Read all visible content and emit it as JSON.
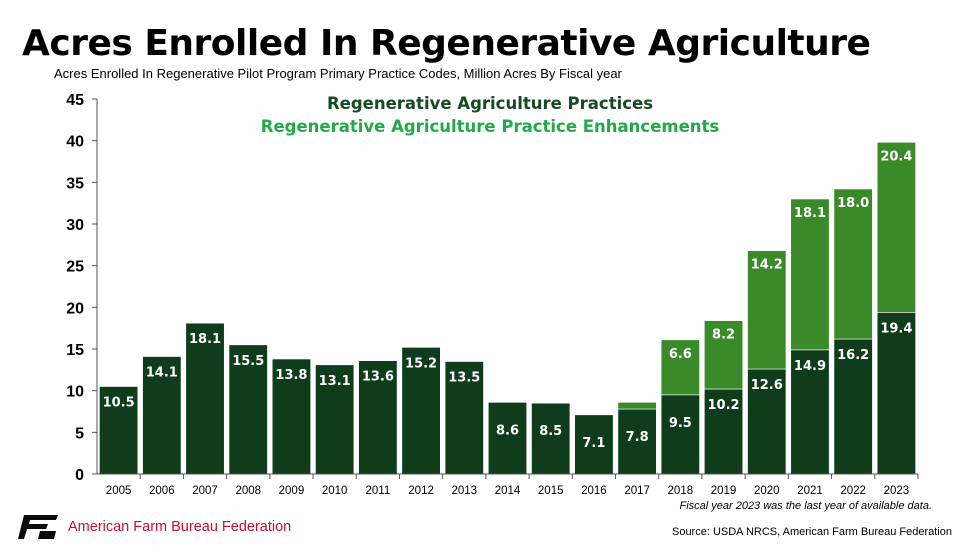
{
  "header": {
    "title": "Acres Enrolled In Regenerative Agriculture",
    "subtitle": "Acres Enrolled In Regenerative Pilot Program Primary Practice Codes, Million Acres By Fiscal year"
  },
  "colors": {
    "practices": "#0f3d1c",
    "enhancements": "#3a8a2a",
    "legend_practices": "#164a22",
    "legend_enhancements": "#23a84a",
    "brand_red": "#c8102e"
  },
  "chart_data": {
    "type": "bar",
    "stacked": true,
    "categories": [
      "2005",
      "2006",
      "2007",
      "2008",
      "2009",
      "2010",
      "2011",
      "2012",
      "2013",
      "2014",
      "2015",
      "2016",
      "2017",
      "2018",
      "2019",
      "2020",
      "2021",
      "2022",
      "2023"
    ],
    "series": [
      {
        "name": "Regenerative Agriculture Practices",
        "values": [
          10.5,
          14.1,
          18.1,
          15.5,
          13.8,
          13.1,
          13.6,
          15.2,
          13.5,
          8.6,
          8.5,
          7.1,
          7.8,
          9.5,
          10.2,
          12.6,
          14.9,
          16.2,
          19.4
        ],
        "labels": [
          "10.5",
          "14.1",
          "18.1",
          "15.5",
          "13.8",
          "13.1",
          "13.6",
          "15.2",
          "13.5",
          "8.6",
          "8.5",
          "7.1",
          "7.8",
          "9.5",
          "10.2",
          "12.6",
          "14.9",
          "16.2",
          "19.4"
        ]
      },
      {
        "name": "Regenerative Agriculture Practice Enhancements",
        "values": [
          0,
          0,
          0,
          0,
          0,
          0,
          0,
          0,
          0,
          0,
          0,
          0,
          0.8,
          6.6,
          8.2,
          14.2,
          18.1,
          18.0,
          20.4
        ],
        "labels": [
          "",
          "",
          "",
          "",
          "",
          "",
          "",
          "",
          "",
          "",
          "",
          "",
          "",
          "6.6",
          "8.2",
          "14.2",
          "18.1",
          "18.0",
          "20.4"
        ]
      }
    ],
    "yticks": [
      "0",
      "5",
      "10",
      "15",
      "20",
      "25",
      "30",
      "35",
      "40",
      "45"
    ],
    "ylim": [
      0,
      45
    ],
    "grid": false,
    "legend_position": "top-center"
  },
  "footnote": "Fiscal year 2023 was the last year of available data.",
  "footer": {
    "organization": "American Farm Bureau Federation",
    "source": "Source: USDA NRCS, American Farm Bureau Federation"
  }
}
